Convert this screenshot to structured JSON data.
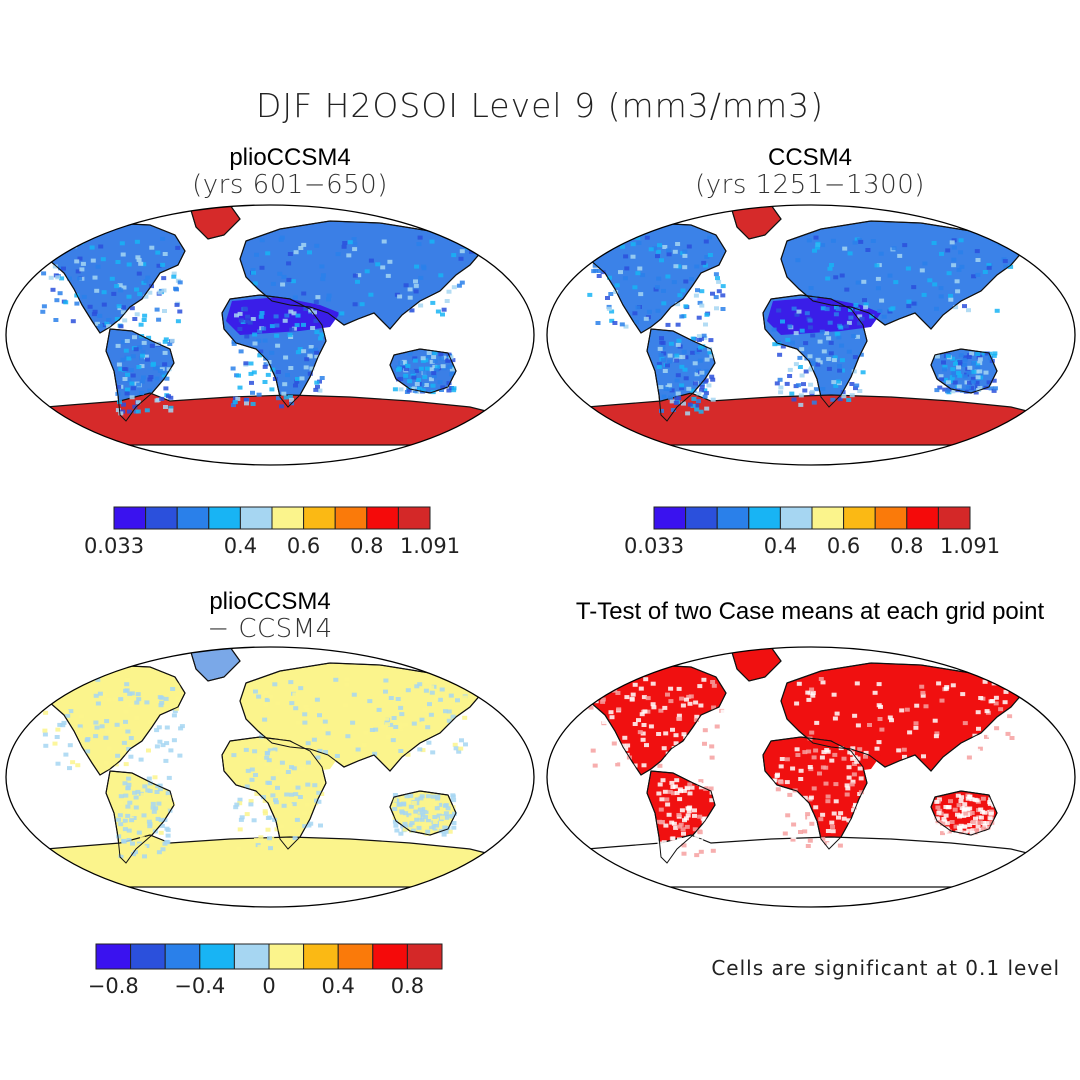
{
  "figure": {
    "title": "DJF H2OSOI Level 9 (mm3/mm3)",
    "footnote": "Cells are significant at 0.1 level"
  },
  "panels": [
    {
      "title": "plioCCSM4",
      "subtitle": "(yrs 601−650)",
      "land_fill": "#3b7fe6",
      "sahara_fill": "#3a1ee8",
      "antarctica_fill": "#d62a2a"
    },
    {
      "title": "CCSM4",
      "subtitle": "(yrs 1251−1300)",
      "land_fill": "#3b82e8",
      "sahara_fill": "#3a1ee8",
      "antarctica_fill": "#d62a2a"
    },
    {
      "title": "plioCCSM4",
      "subtitle": "− CCSM4",
      "land_fill": "#fbf48c",
      "sahara_fill": "#fbf48c",
      "antarctica_fill": "#fbf48c"
    },
    {
      "title": "T-Test of two Case means at each grid point",
      "subtitle": "",
      "land_fill": "#f01010",
      "sahara_fill": "#f01010",
      "antarctica_fill": "#ffffff"
    }
  ],
  "colorbars": [
    {
      "colors": [
        "#3a12ef",
        "#2b50dc",
        "#2a80ea",
        "#18b4f4",
        "#a6d6f2",
        "#fbf48c",
        "#fbb914",
        "#fa7a0a",
        "#f50a0a",
        "#d42828"
      ],
      "labels": [
        "0.033",
        "0.4",
        "0.6",
        "0.8",
        "1.091"
      ]
    },
    {
      "colors": [
        "#3a12ef",
        "#2b50dc",
        "#2a80ea",
        "#18b4f4",
        "#a6d6f2",
        "#fbf48c",
        "#fbb914",
        "#fa7a0a",
        "#f50a0a",
        "#d42828"
      ],
      "labels": [
        "0.033",
        "0.4",
        "0.6",
        "0.8",
        "1.091"
      ]
    },
    {
      "colors": [
        "#3a12ef",
        "#2b50dc",
        "#2a80ea",
        "#18b4f4",
        "#a6d6f2",
        "#fbf48c",
        "#fbb914",
        "#fa7a0a",
        "#f50a0a",
        "#d42828"
      ],
      "labels": [
        "−0.8",
        "−0.4",
        "0",
        "0.4",
        "0.8"
      ]
    }
  ]
}
